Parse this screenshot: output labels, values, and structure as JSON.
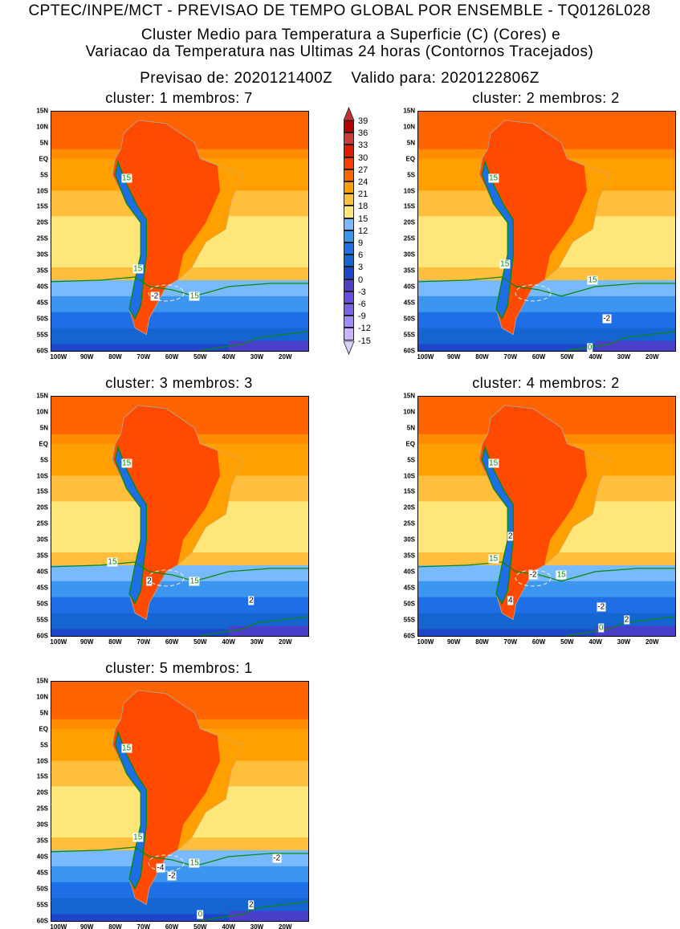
{
  "header": {
    "line1": "CPTEC/INPE/MCT - PREVISAO DE TEMPO GLOBAL POR ENSEMBLE - TQ0126L028",
    "line2": "Cluster Medio para Temperatura a Superficie (C) (Cores) e",
    "line3": "Variacao da Temperatura nas Ultimas 24 horas (Contornos Tracejados)",
    "line4": "Previsao de: 2020121400Z    Valido para: 2020122806Z"
  },
  "axes": {
    "lat_ticks": [
      "15N",
      "10N",
      "5N",
      "EQ",
      "5S",
      "10S",
      "15S",
      "20S",
      "25S",
      "30S",
      "35S",
      "40S",
      "45S",
      "50S",
      "55S",
      "60S"
    ],
    "lon_ticks": [
      "100W",
      "90W",
      "80W",
      "70W",
      "60W",
      "50W",
      "40W",
      "30W",
      "20W"
    ]
  },
  "colorbar": {
    "labels": [
      "39",
      "36",
      "33",
      "30",
      "27",
      "24",
      "21",
      "18",
      "15",
      "12",
      "9",
      "6",
      "3",
      "0",
      "-3",
      "-6",
      "-9",
      "-12",
      "-15"
    ],
    "colors": [
      "#c03232",
      "#b40000",
      "#c83c3c",
      "#dc1e00",
      "#ff3c00",
      "#ff6400",
      "#ffa000",
      "#ffbe3c",
      "#ffe678",
      "#78b9ff",
      "#3c96f0",
      "#1e6ee6",
      "#1464d2",
      "#1e46c8",
      "#5040c8",
      "#6450dc",
      "#7864e6",
      "#a08cff",
      "#c8b4ff",
      "#dcd2ff"
    ],
    "top_arrow_color": "#c03232",
    "bottom_arrow_color": "#dcd2ff"
  },
  "panels": [
    {
      "title": "cluster: 1   membros: 7",
      "labels": [
        "15",
        "15",
        "15",
        "-2"
      ]
    },
    {
      "title": "cluster: 2   membros: 2",
      "labels": [
        "15",
        "15",
        "15",
        "-2",
        "0"
      ]
    },
    {
      "title": "cluster: 3   membros: 3",
      "labels": [
        "15",
        "15",
        "15",
        "2",
        "2"
      ]
    },
    {
      "title": "cluster: 4   membros: 2",
      "labels": [
        "15",
        "15",
        "15",
        "2",
        "-2",
        "4",
        "-2",
        "2",
        "0"
      ]
    },
    {
      "title": "cluster: 5   membros: 1",
      "labels": [
        "15",
        "15",
        "15",
        "-4",
        "-2",
        "-2",
        "2",
        "0"
      ]
    }
  ]
}
